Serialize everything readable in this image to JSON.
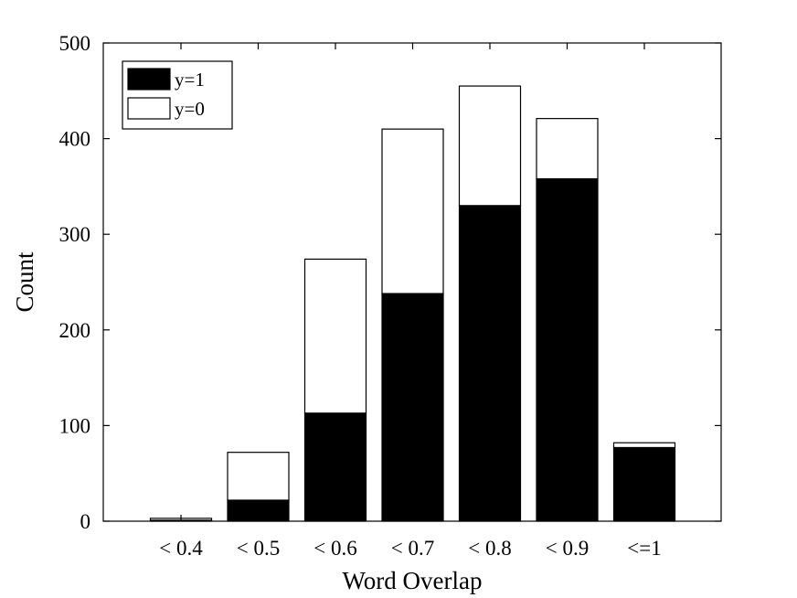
{
  "chart_data": {
    "type": "bar",
    "stacked": true,
    "categories": [
      "< 0.4",
      "< 0.5",
      "< 0.6",
      "< 0.7",
      "< 0.8",
      "< 0.9",
      "<=1"
    ],
    "series": [
      {
        "name": "y=1",
        "color": "#000000",
        "values": [
          1,
          22,
          113,
          238,
          330,
          358,
          77
        ]
      },
      {
        "name": "y=0",
        "color": "#ffffff",
        "values": [
          2,
          50,
          161,
          172,
          125,
          63,
          5
        ]
      }
    ],
    "xlabel": "Word Overlap",
    "ylabel": "Count",
    "ylim": [
      0,
      500
    ],
    "yticks": [
      "0",
      "100",
      "200",
      "300",
      "400",
      "500"
    ],
    "grid": false,
    "legend_position": "top-left"
  }
}
